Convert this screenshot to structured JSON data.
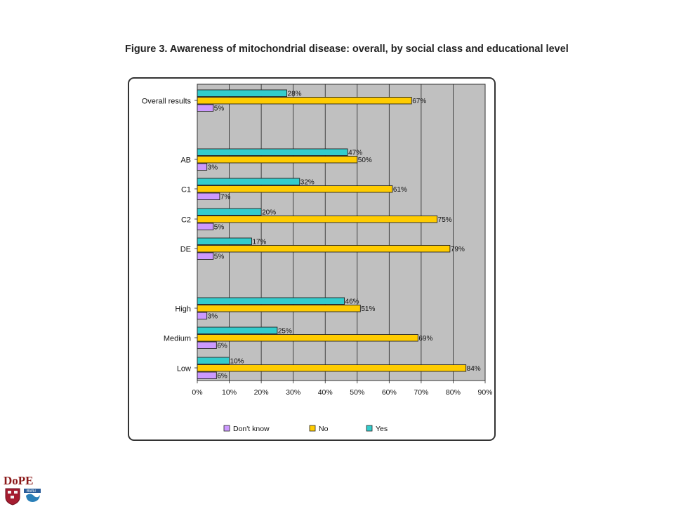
{
  "title": "Figure 3. Awareness of mitochondrial disease: overall, by social class and educational level",
  "colors": {
    "yes": "#33CCCC",
    "no": "#FFCC00",
    "dont_know": "#CC99FF",
    "plot_bg": "#C0C0C0"
  },
  "logo": {
    "text": "DoPE",
    "subtext": "BWH"
  },
  "chart_data": {
    "type": "bar",
    "orientation": "horizontal",
    "categories": [
      "Overall results",
      "AB",
      "C1",
      "C2",
      "DE",
      "High",
      "Medium",
      "Low"
    ],
    "series": [
      {
        "name": "Yes",
        "values": [
          28,
          47,
          32,
          20,
          17,
          46,
          25,
          10
        ],
        "labels": [
          "28%",
          "47%",
          "32%",
          "20%",
          "17%",
          "46%",
          "25%",
          "10%"
        ]
      },
      {
        "name": "No",
        "values": [
          67,
          50,
          61,
          75,
          79,
          51,
          69,
          84
        ],
        "labels": [
          "67%",
          "50%",
          "61%",
          "75%",
          "79%",
          "51%",
          "69%",
          "84%"
        ]
      },
      {
        "name": "Don't know",
        "values": [
          5,
          3,
          7,
          5,
          5,
          3,
          6,
          6
        ],
        "labels": [
          "5%",
          "3%",
          "7%",
          "5%",
          "5%",
          "3%",
          "6%",
          "6%"
        ]
      }
    ],
    "xlim": [
      0,
      90
    ],
    "xticks": [
      "0%",
      "10%",
      "20%",
      "30%",
      "40%",
      "50%",
      "60%",
      "70%",
      "80%",
      "90%"
    ],
    "legend": [
      "Don't know",
      "No",
      "Yes"
    ],
    "legend_position": "bottom",
    "grid": true
  }
}
